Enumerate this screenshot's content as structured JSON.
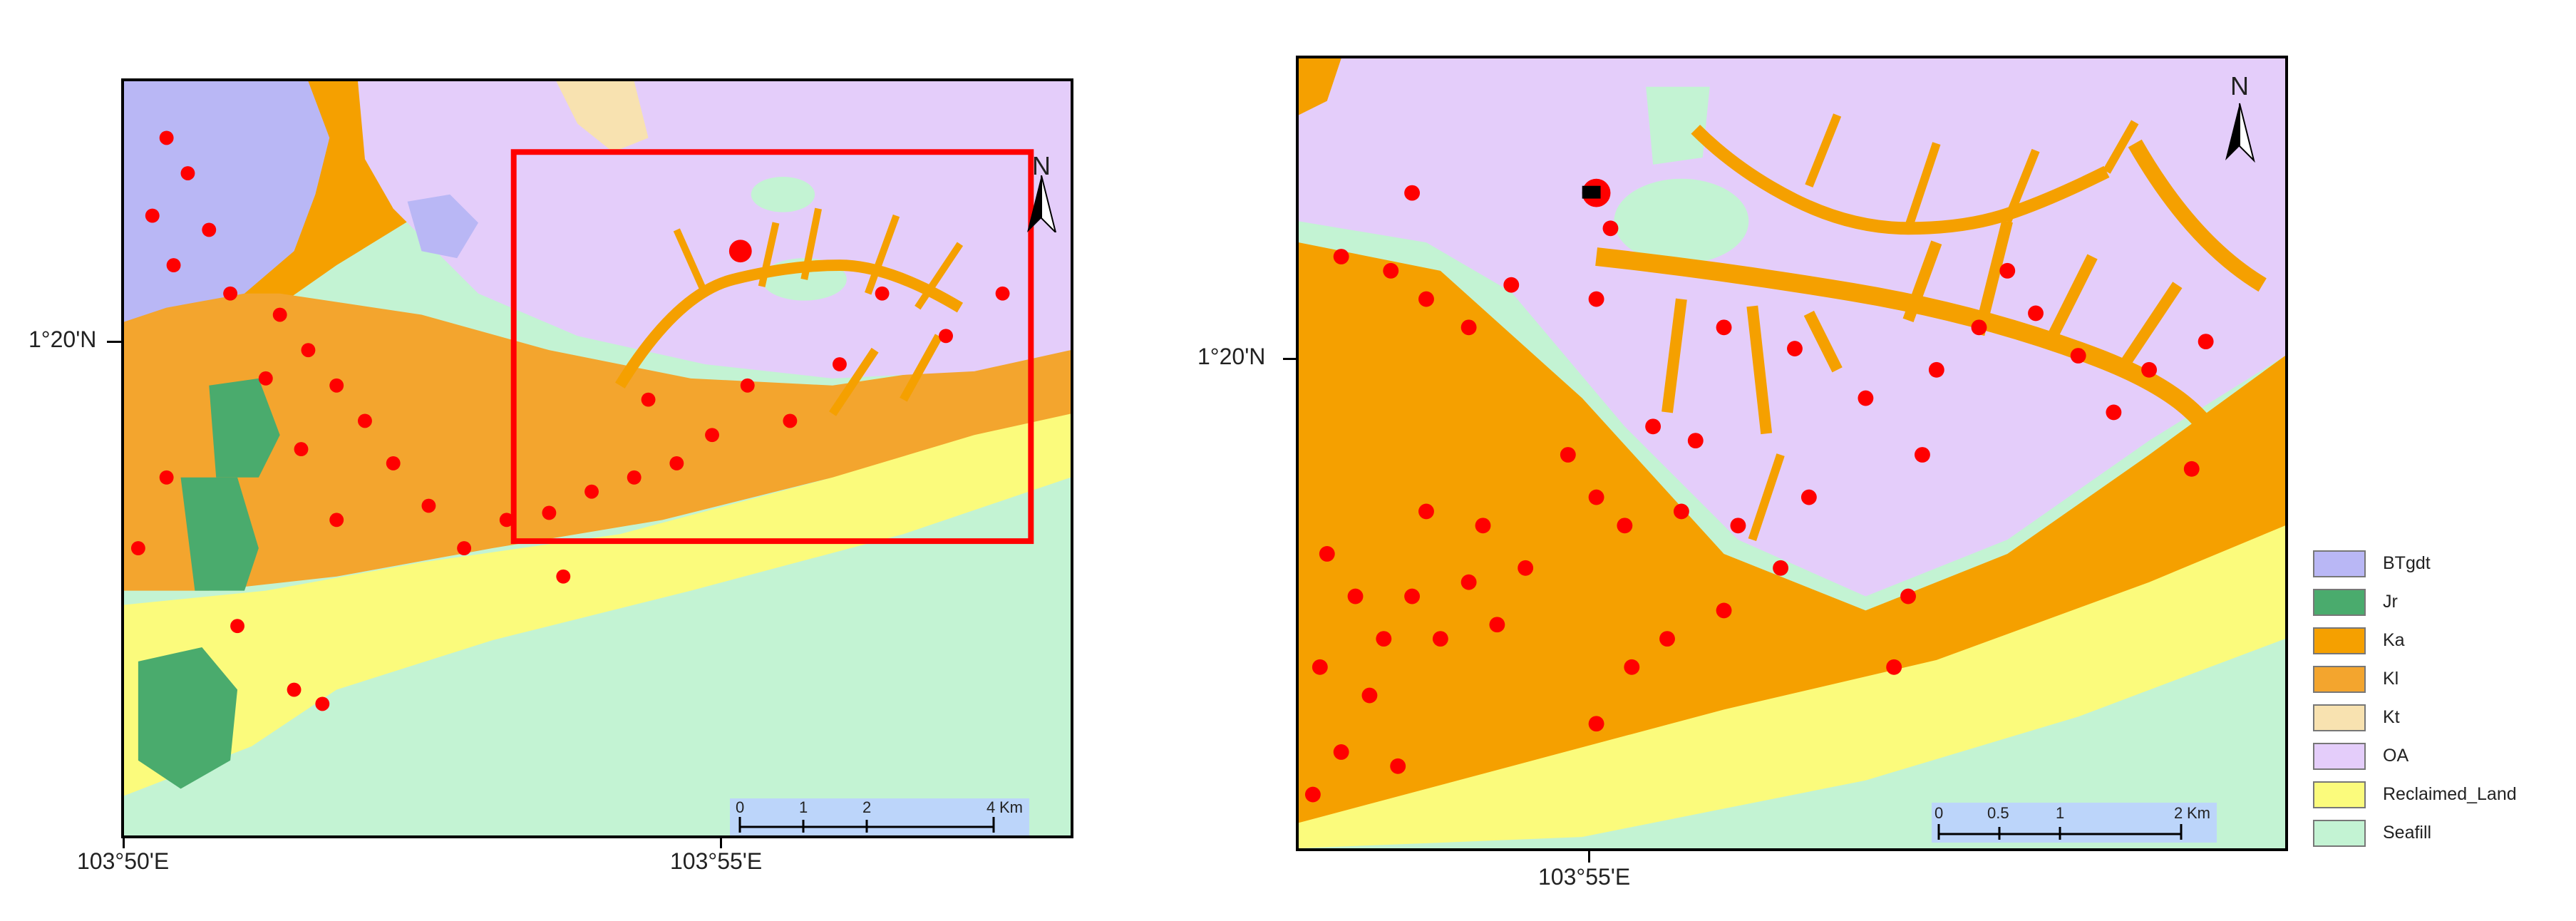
{
  "legend": {
    "items": [
      {
        "label": "BTgdt",
        "color": "#b9b7f5"
      },
      {
        "label": "Jr",
        "color": "#4aab6d"
      },
      {
        "label": "Ka",
        "color": "#f5a000"
      },
      {
        "label": "Kl",
        "color": "#f3a52e"
      },
      {
        "label": "Kt",
        "color": "#f8e2b0"
      },
      {
        "label": "OA",
        "color": "#e4cdfa"
      },
      {
        "label": "Reclaimed_Land",
        "color": "#fbfb7c"
      },
      {
        "label": "Seafill",
        "color": "#c3f3d3"
      }
    ]
  },
  "left_map": {
    "lat_label": "1°20'N",
    "lon_labels": [
      "103°50'E",
      "103°55'E"
    ],
    "north": "N",
    "scale": {
      "ticks": [
        "0",
        "1",
        "2",
        "4"
      ],
      "unit": "Km"
    }
  },
  "right_map": {
    "lat_label": "1°20'N",
    "lon_label": "103°55'E",
    "north": "N",
    "scale": {
      "ticks": [
        "0",
        "0.5",
        "1",
        "2"
      ],
      "unit": "Km"
    }
  },
  "colors": {
    "points": "#ff0000",
    "extent_box": "#ff0000",
    "sea": "#c3f3d3"
  }
}
